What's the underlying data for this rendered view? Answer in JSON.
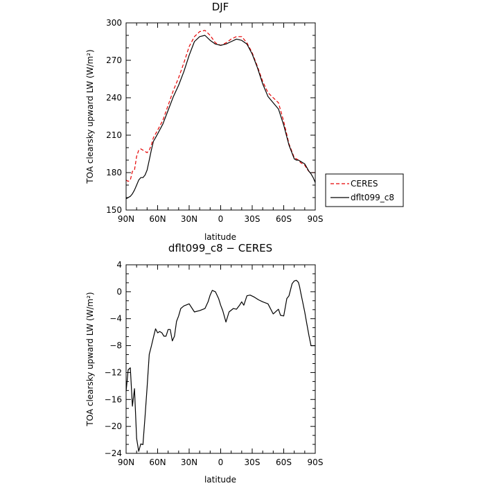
{
  "chart_data": [
    {
      "type": "line",
      "title": "DJF",
      "xlabel": "latitude",
      "ylabel": "TOA clearsky upward LW (W/m²)",
      "xlim": [
        90,
        -90
      ],
      "ylim": [
        150,
        300
      ],
      "xticks": [
        90,
        60,
        30,
        0,
        -30,
        -60,
        -90
      ],
      "xtick_labels": [
        "90N",
        "60N",
        "30N",
        "0",
        "30S",
        "60S",
        "90S"
      ],
      "yticks": [
        150,
        180,
        210,
        240,
        270,
        300
      ],
      "ytick_labels": [
        "150",
        "180",
        "210",
        "240",
        "270",
        "300"
      ],
      "legend_position": "right",
      "series": [
        {
          "name": "CERES",
          "color": "#e60000",
          "dash": "dashed",
          "x": [
            90,
            88,
            86,
            84,
            82,
            80,
            78,
            76,
            74,
            72,
            70,
            68,
            66,
            64,
            62,
            60,
            55,
            50,
            45,
            40,
            35,
            30,
            25,
            20,
            15,
            10,
            5,
            0,
            -5,
            -10,
            -15,
            -20,
            -25,
            -30,
            -35,
            -40,
            -45,
            -50,
            -55,
            -60,
            -65,
            -70,
            -72,
            -74,
            -76,
            -78,
            -80,
            -82,
            -84,
            -86,
            -88,
            -90
          ],
          "y": [
            174,
            173,
            174,
            181,
            182,
            193,
            198,
            199,
            198,
            197,
            196,
            198,
            202,
            208,
            211,
            214,
            222,
            234,
            246,
            256,
            268,
            281,
            289,
            293,
            294,
            290,
            284,
            282,
            284,
            287,
            289,
            289,
            284,
            276,
            265,
            253,
            244,
            240,
            236,
            221,
            203,
            192,
            191,
            190,
            188,
            187,
            186,
            183,
            181,
            180,
            180,
            180
          ]
        },
        {
          "name": "dflt099_c8",
          "color": "#000000",
          "dash": "solid",
          "x": [
            90,
            88,
            86,
            84,
            82,
            80,
            78,
            76,
            74,
            72,
            70,
            68,
            66,
            64,
            62,
            60,
            55,
            50,
            45,
            40,
            35,
            30,
            25,
            20,
            15,
            10,
            5,
            0,
            -5,
            -10,
            -15,
            -20,
            -25,
            -30,
            -35,
            -40,
            -45,
            -50,
            -55,
            -60,
            -65,
            -70,
            -72,
            -74,
            -76,
            -78,
            -80,
            -82,
            -84,
            -86,
            -88,
            -90
          ],
          "y": [
            159,
            160,
            161,
            163,
            166,
            170,
            174,
            176,
            176,
            178,
            182,
            190,
            198,
            205,
            208,
            211,
            219,
            230,
            241,
            250,
            261,
            274,
            285,
            289,
            290,
            286,
            283,
            282,
            283,
            285,
            287,
            286,
            283,
            275,
            264,
            251,
            241,
            236,
            231,
            218,
            202,
            191,
            190,
            190,
            189,
            188,
            187,
            184,
            181,
            179,
            176,
            172
          ]
        }
      ]
    },
    {
      "type": "line",
      "title": "dflt099_c8 − CERES",
      "xlabel": "latitude",
      "ylabel": "TOA clearsky upward LW (W/m²)",
      "xlim": [
        90,
        -90
      ],
      "ylim": [
        -24,
        4
      ],
      "xticks": [
        90,
        60,
        30,
        0,
        -30,
        -60,
        -90
      ],
      "xtick_labels": [
        "90N",
        "60N",
        "30N",
        "0",
        "30S",
        "60S",
        "90S"
      ],
      "yticks": [
        4,
        0,
        -4,
        -8,
        -12,
        -16,
        -20,
        -24
      ],
      "ytick_labels": [
        "4",
        "0",
        "−4",
        "−8",
        "−12",
        "−16",
        "−20",
        "−24"
      ],
      "series": [
        {
          "name": "dflt099_c8 − CERES",
          "color": "#000000",
          "dash": "solid",
          "x": [
            90,
            88,
            86,
            84,
            82,
            80,
            78,
            76,
            74,
            72,
            70,
            68,
            66,
            64,
            62,
            60,
            58,
            56,
            54,
            52,
            50,
            48,
            46,
            44,
            42,
            40,
            38,
            35,
            30,
            25,
            20,
            15,
            12,
            10,
            8,
            5,
            2,
            0,
            -2,
            -5,
            -8,
            -12,
            -15,
            -18,
            -20,
            -22,
            -25,
            -28,
            -32,
            -36,
            -40,
            -45,
            -50,
            -55,
            -57,
            -60,
            -63,
            -65,
            -68,
            -70,
            -72,
            -74,
            -75,
            -76,
            -78,
            -80,
            -82,
            -84,
            -86,
            -88,
            -90
          ],
          "y": [
            -14.8,
            -11.6,
            -11.3,
            -17,
            -14.4,
            -21.8,
            -23.7,
            -22.6,
            -22.7,
            -18.6,
            -14.2,
            -9.3,
            -8.1,
            -6.8,
            -5.5,
            -6.1,
            -5.9,
            -6.1,
            -6.6,
            -6.6,
            -5.6,
            -5.6,
            -7.3,
            -6.6,
            -4.4,
            -3.6,
            -2.5,
            -2.1,
            -1.8,
            -3,
            -2.8,
            -2.5,
            -1.5,
            -0.5,
            0.2,
            0,
            -1,
            -2,
            -2.8,
            -4.5,
            -3,
            -2.5,
            -2.6,
            -2,
            -1.5,
            -2,
            -0.6,
            -0.5,
            -0.8,
            -1.2,
            -1.5,
            -1.8,
            -3.3,
            -2.6,
            -3.5,
            -3.6,
            -1,
            -0.6,
            1.2,
            1.6,
            1.7,
            1.4,
            0.8,
            0,
            -1.5,
            -3,
            -4.8,
            -6.5,
            -8,
            -8,
            -8
          ]
        }
      ]
    }
  ]
}
